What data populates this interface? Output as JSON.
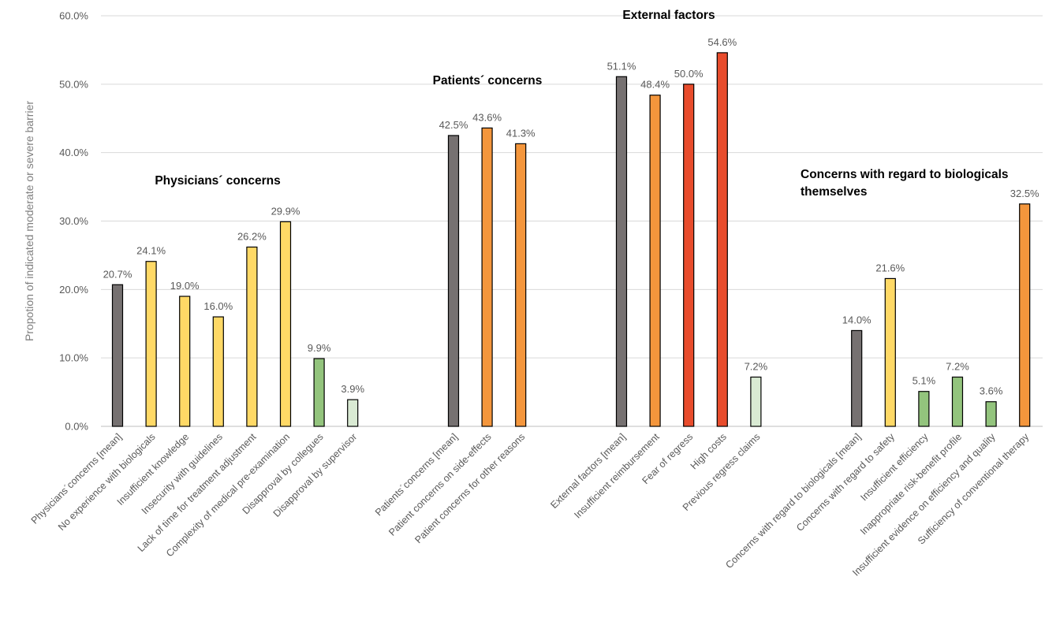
{
  "chart_data": {
    "type": "bar",
    "ylabel": "Propotion of indicated moderate or severe barrier",
    "ylim": [
      0,
      60
    ],
    "yticks": [
      0,
      10,
      20,
      30,
      40,
      50,
      60
    ],
    "ytick_labels": [
      "0.0%",
      "10.0%",
      "20.0%",
      "30.0%",
      "40.0%",
      "50.0%",
      "60.0%"
    ],
    "grid": "horizontal",
    "legend": "none",
    "groups": [
      {
        "title": "Physicians´ concerns",
        "bars": [
          {
            "label": "Physicians´concerns [mean]",
            "value": 20.7,
            "value_label": "20.7%",
            "color": "#767171"
          },
          {
            "label": "No experience with biologicals",
            "value": 24.1,
            "value_label": "24.1%",
            "color": "#ffd966"
          },
          {
            "label": "Insufficient knowledge",
            "value": 19.0,
            "value_label": "19.0%",
            "color": "#ffd966"
          },
          {
            "label": "Insecurity with guidelines",
            "value": 16.0,
            "value_label": "16.0%",
            "color": "#ffd966"
          },
          {
            "label": "Lack of time for treatment adjustment",
            "value": 26.2,
            "value_label": "26.2%",
            "color": "#ffd966"
          },
          {
            "label": "Complexity of medical pre-examination",
            "value": 29.9,
            "value_label": "29.9%",
            "color": "#ffd966"
          },
          {
            "label": "Disapproval by collegues",
            "value": 9.9,
            "value_label": "9.9%",
            "color": "#93c47d"
          },
          {
            "label": "Disapproval by supervisor",
            "value": 3.9,
            "value_label": "3.9%",
            "color": "#d9ead3"
          }
        ]
      },
      {
        "title": "Patients´ concerns",
        "bars": [
          {
            "label": "Patients´concerns [mean]",
            "value": 42.5,
            "value_label": "42.5%",
            "color": "#767171"
          },
          {
            "label": "Patient concerns on side-effects",
            "value": 43.6,
            "value_label": "43.6%",
            "color": "#f4963c"
          },
          {
            "label": "Patient concerns for other reasons",
            "value": 41.3,
            "value_label": "41.3%",
            "color": "#f4963c"
          }
        ]
      },
      {
        "title": "External factors",
        "bars": [
          {
            "label": "External factors [mean]",
            "value": 51.1,
            "value_label": "51.1%",
            "color": "#767171"
          },
          {
            "label": "Insufficient reimbursement",
            "value": 48.4,
            "value_label": "48.4%",
            "color": "#f4963c"
          },
          {
            "label": "Fear of regress",
            "value": 50.0,
            "value_label": "50.0%",
            "color": "#e84c2c"
          },
          {
            "label": "High costs",
            "value": 54.6,
            "value_label": "54.6%",
            "color": "#e84c2c"
          },
          {
            "label": "Previous regress claims",
            "value": 7.2,
            "value_label": "7.2%",
            "color": "#d9ead3"
          }
        ]
      },
      {
        "title_lines": [
          "Concerns with regard to biologicals",
          "themselves"
        ],
        "bars": [
          {
            "label": "Concerns with regard to biologicals [mean]",
            "value": 14.0,
            "value_label": "14.0%",
            "color": "#767171"
          },
          {
            "label": "Concerns with regard to safety",
            "value": 21.6,
            "value_label": "21.6%",
            "color": "#ffd966"
          },
          {
            "label": "Insufficient efficiency",
            "value": 5.1,
            "value_label": "5.1%",
            "color": "#93c47d"
          },
          {
            "label": "Inappropriate risk-benefit profile",
            "value": 7.2,
            "value_label": "7.2%",
            "color": "#93c47d"
          },
          {
            "label": "Insufficient evidence on efficiency and quality",
            "value": 3.6,
            "value_label": "3.6%",
            "color": "#93c47d"
          },
          {
            "label": "Sufficiency of conventional therapy",
            "value": 32.5,
            "value_label": "32.5%",
            "color": "#f4963c"
          }
        ]
      }
    ]
  }
}
